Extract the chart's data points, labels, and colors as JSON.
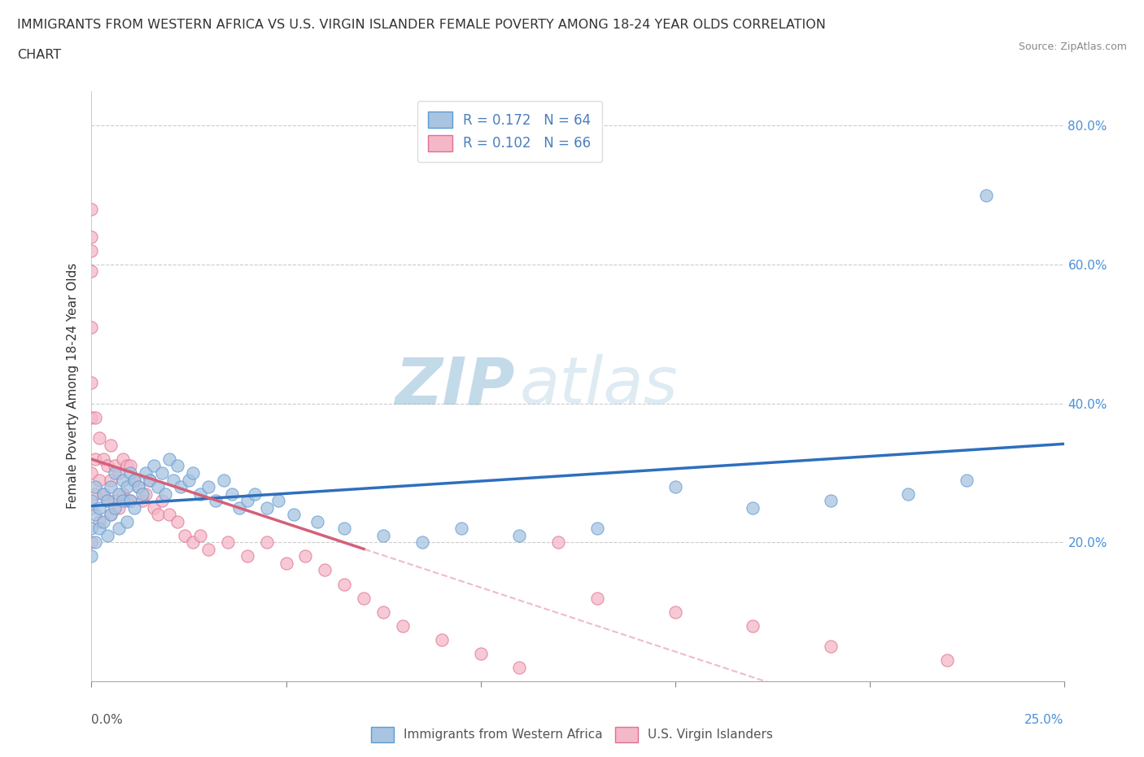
{
  "title_line1": "IMMIGRANTS FROM WESTERN AFRICA VS U.S. VIRGIN ISLANDER FEMALE POVERTY AMONG 18-24 YEAR OLDS CORRELATION",
  "title_line2": "CHART",
  "source": "Source: ZipAtlas.com",
  "ylabel": "Female Poverty Among 18-24 Year Olds",
  "xlim": [
    0.0,
    0.25
  ],
  "ylim": [
    0.0,
    0.85
  ],
  "xtick_positions": [
    0.0,
    0.25
  ],
  "xtick_labels": [
    "0.0%",
    "25.0%"
  ],
  "ytick_vals": [
    0.2,
    0.4,
    0.6,
    0.8
  ],
  "ytick_labels": [
    "20.0%",
    "40.0%",
    "60.0%",
    "80.0%"
  ],
  "blue_fill": "#a8c4e0",
  "blue_edge": "#5b9bd5",
  "blue_line": "#2e6fbd",
  "pink_fill": "#f4b8c8",
  "pink_edge": "#e07090",
  "pink_line": "#d4607a",
  "pink_dash": "#e8a0b0",
  "R_blue": 0.172,
  "N_blue": 64,
  "R_pink": 0.102,
  "N_pink": 66,
  "legend_label_blue": "Immigrants from Western Africa",
  "legend_label_pink": "U.S. Virgin Islanders",
  "watermark_zip": "ZIP",
  "watermark_atlas": "atlas",
  "blue_x": [
    0.0,
    0.0,
    0.0,
    0.001,
    0.001,
    0.001,
    0.002,
    0.002,
    0.003,
    0.003,
    0.004,
    0.004,
    0.005,
    0.005,
    0.006,
    0.006,
    0.007,
    0.007,
    0.008,
    0.008,
    0.009,
    0.009,
    0.01,
    0.01,
    0.011,
    0.011,
    0.012,
    0.013,
    0.014,
    0.015,
    0.016,
    0.017,
    0.018,
    0.019,
    0.02,
    0.021,
    0.022,
    0.023,
    0.025,
    0.026,
    0.028,
    0.03,
    0.032,
    0.034,
    0.036,
    0.038,
    0.04,
    0.042,
    0.045,
    0.048,
    0.052,
    0.058,
    0.065,
    0.075,
    0.085,
    0.095,
    0.11,
    0.13,
    0.15,
    0.17,
    0.19,
    0.21,
    0.225,
    0.23
  ],
  "blue_y": [
    0.22,
    0.26,
    0.18,
    0.24,
    0.2,
    0.28,
    0.25,
    0.22,
    0.27,
    0.23,
    0.26,
    0.21,
    0.28,
    0.24,
    0.3,
    0.25,
    0.27,
    0.22,
    0.29,
    0.26,
    0.28,
    0.23,
    0.3,
    0.26,
    0.29,
    0.25,
    0.28,
    0.27,
    0.3,
    0.29,
    0.31,
    0.28,
    0.3,
    0.27,
    0.32,
    0.29,
    0.31,
    0.28,
    0.29,
    0.3,
    0.27,
    0.28,
    0.26,
    0.29,
    0.27,
    0.25,
    0.26,
    0.27,
    0.25,
    0.26,
    0.24,
    0.23,
    0.22,
    0.21,
    0.2,
    0.22,
    0.21,
    0.22,
    0.28,
    0.25,
    0.26,
    0.27,
    0.29,
    0.7
  ],
  "pink_x": [
    0.0,
    0.0,
    0.0,
    0.0,
    0.0,
    0.0,
    0.0,
    0.0,
    0.0,
    0.0,
    0.001,
    0.001,
    0.001,
    0.002,
    0.002,
    0.002,
    0.003,
    0.003,
    0.004,
    0.004,
    0.005,
    0.005,
    0.005,
    0.006,
    0.006,
    0.007,
    0.007,
    0.008,
    0.008,
    0.009,
    0.009,
    0.01,
    0.01,
    0.011,
    0.012,
    0.013,
    0.014,
    0.015,
    0.016,
    0.017,
    0.018,
    0.02,
    0.022,
    0.024,
    0.026,
    0.028,
    0.03,
    0.035,
    0.04,
    0.045,
    0.05,
    0.055,
    0.06,
    0.065,
    0.07,
    0.075,
    0.08,
    0.09,
    0.1,
    0.11,
    0.12,
    0.13,
    0.15,
    0.17,
    0.19,
    0.22
  ],
  "pink_y": [
    0.68,
    0.64,
    0.62,
    0.59,
    0.51,
    0.43,
    0.38,
    0.3,
    0.25,
    0.2,
    0.38,
    0.32,
    0.27,
    0.35,
    0.29,
    0.23,
    0.32,
    0.27,
    0.31,
    0.26,
    0.34,
    0.29,
    0.24,
    0.31,
    0.26,
    0.3,
    0.25,
    0.32,
    0.27,
    0.31,
    0.26,
    0.31,
    0.26,
    0.29,
    0.28,
    0.26,
    0.27,
    0.29,
    0.25,
    0.24,
    0.26,
    0.24,
    0.23,
    0.21,
    0.2,
    0.21,
    0.19,
    0.2,
    0.18,
    0.2,
    0.17,
    0.18,
    0.16,
    0.14,
    0.12,
    0.1,
    0.08,
    0.06,
    0.04,
    0.02,
    0.2,
    0.12,
    0.1,
    0.08,
    0.05,
    0.03
  ]
}
